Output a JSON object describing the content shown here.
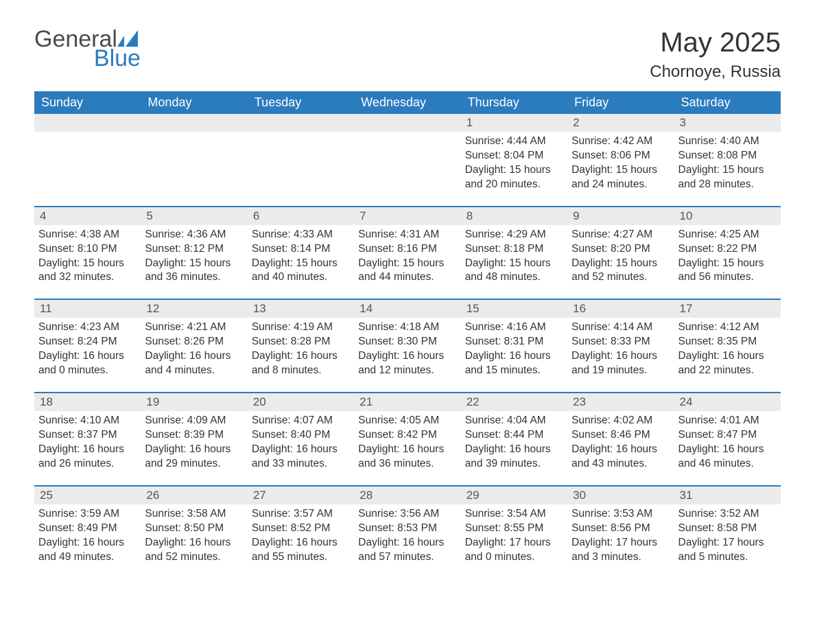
{
  "logo": {
    "text_general": "General",
    "text_blue": "Blue",
    "icon_color": "#2b7bbf"
  },
  "header": {
    "month_title": "May 2025",
    "location": "Chornoye, Russia"
  },
  "colors": {
    "header_bg": "#2b7bbf",
    "header_text": "#ffffff",
    "daynum_bg": "#ebebeb",
    "week_border": "#2b7bbf",
    "body_text": "#333333",
    "logo_gray": "#4a4a4a",
    "logo_blue": "#2b7bbf"
  },
  "weekdays": [
    "Sunday",
    "Monday",
    "Tuesday",
    "Wednesday",
    "Thursday",
    "Friday",
    "Saturday"
  ],
  "weeks": [
    [
      {
        "empty": true
      },
      {
        "empty": true
      },
      {
        "empty": true
      },
      {
        "empty": true
      },
      {
        "num": "1",
        "sunrise": "Sunrise: 4:44 AM",
        "sunset": "Sunset: 8:04 PM",
        "daylight": "Daylight: 15 hours and 20 minutes."
      },
      {
        "num": "2",
        "sunrise": "Sunrise: 4:42 AM",
        "sunset": "Sunset: 8:06 PM",
        "daylight": "Daylight: 15 hours and 24 minutes."
      },
      {
        "num": "3",
        "sunrise": "Sunrise: 4:40 AM",
        "sunset": "Sunset: 8:08 PM",
        "daylight": "Daylight: 15 hours and 28 minutes."
      }
    ],
    [
      {
        "num": "4",
        "sunrise": "Sunrise: 4:38 AM",
        "sunset": "Sunset: 8:10 PM",
        "daylight": "Daylight: 15 hours and 32 minutes."
      },
      {
        "num": "5",
        "sunrise": "Sunrise: 4:36 AM",
        "sunset": "Sunset: 8:12 PM",
        "daylight": "Daylight: 15 hours and 36 minutes."
      },
      {
        "num": "6",
        "sunrise": "Sunrise: 4:33 AM",
        "sunset": "Sunset: 8:14 PM",
        "daylight": "Daylight: 15 hours and 40 minutes."
      },
      {
        "num": "7",
        "sunrise": "Sunrise: 4:31 AM",
        "sunset": "Sunset: 8:16 PM",
        "daylight": "Daylight: 15 hours and 44 minutes."
      },
      {
        "num": "8",
        "sunrise": "Sunrise: 4:29 AM",
        "sunset": "Sunset: 8:18 PM",
        "daylight": "Daylight: 15 hours and 48 minutes."
      },
      {
        "num": "9",
        "sunrise": "Sunrise: 4:27 AM",
        "sunset": "Sunset: 8:20 PM",
        "daylight": "Daylight: 15 hours and 52 minutes."
      },
      {
        "num": "10",
        "sunrise": "Sunrise: 4:25 AM",
        "sunset": "Sunset: 8:22 PM",
        "daylight": "Daylight: 15 hours and 56 minutes."
      }
    ],
    [
      {
        "num": "11",
        "sunrise": "Sunrise: 4:23 AM",
        "sunset": "Sunset: 8:24 PM",
        "daylight": "Daylight: 16 hours and 0 minutes."
      },
      {
        "num": "12",
        "sunrise": "Sunrise: 4:21 AM",
        "sunset": "Sunset: 8:26 PM",
        "daylight": "Daylight: 16 hours and 4 minutes."
      },
      {
        "num": "13",
        "sunrise": "Sunrise: 4:19 AM",
        "sunset": "Sunset: 8:28 PM",
        "daylight": "Daylight: 16 hours and 8 minutes."
      },
      {
        "num": "14",
        "sunrise": "Sunrise: 4:18 AM",
        "sunset": "Sunset: 8:30 PM",
        "daylight": "Daylight: 16 hours and 12 minutes."
      },
      {
        "num": "15",
        "sunrise": "Sunrise: 4:16 AM",
        "sunset": "Sunset: 8:31 PM",
        "daylight": "Daylight: 16 hours and 15 minutes."
      },
      {
        "num": "16",
        "sunrise": "Sunrise: 4:14 AM",
        "sunset": "Sunset: 8:33 PM",
        "daylight": "Daylight: 16 hours and 19 minutes."
      },
      {
        "num": "17",
        "sunrise": "Sunrise: 4:12 AM",
        "sunset": "Sunset: 8:35 PM",
        "daylight": "Daylight: 16 hours and 22 minutes."
      }
    ],
    [
      {
        "num": "18",
        "sunrise": "Sunrise: 4:10 AM",
        "sunset": "Sunset: 8:37 PM",
        "daylight": "Daylight: 16 hours and 26 minutes."
      },
      {
        "num": "19",
        "sunrise": "Sunrise: 4:09 AM",
        "sunset": "Sunset: 8:39 PM",
        "daylight": "Daylight: 16 hours and 29 minutes."
      },
      {
        "num": "20",
        "sunrise": "Sunrise: 4:07 AM",
        "sunset": "Sunset: 8:40 PM",
        "daylight": "Daylight: 16 hours and 33 minutes."
      },
      {
        "num": "21",
        "sunrise": "Sunrise: 4:05 AM",
        "sunset": "Sunset: 8:42 PM",
        "daylight": "Daylight: 16 hours and 36 minutes."
      },
      {
        "num": "22",
        "sunrise": "Sunrise: 4:04 AM",
        "sunset": "Sunset: 8:44 PM",
        "daylight": "Daylight: 16 hours and 39 minutes."
      },
      {
        "num": "23",
        "sunrise": "Sunrise: 4:02 AM",
        "sunset": "Sunset: 8:46 PM",
        "daylight": "Daylight: 16 hours and 43 minutes."
      },
      {
        "num": "24",
        "sunrise": "Sunrise: 4:01 AM",
        "sunset": "Sunset: 8:47 PM",
        "daylight": "Daylight: 16 hours and 46 minutes."
      }
    ],
    [
      {
        "num": "25",
        "sunrise": "Sunrise: 3:59 AM",
        "sunset": "Sunset: 8:49 PM",
        "daylight": "Daylight: 16 hours and 49 minutes."
      },
      {
        "num": "26",
        "sunrise": "Sunrise: 3:58 AM",
        "sunset": "Sunset: 8:50 PM",
        "daylight": "Daylight: 16 hours and 52 minutes."
      },
      {
        "num": "27",
        "sunrise": "Sunrise: 3:57 AM",
        "sunset": "Sunset: 8:52 PM",
        "daylight": "Daylight: 16 hours and 55 minutes."
      },
      {
        "num": "28",
        "sunrise": "Sunrise: 3:56 AM",
        "sunset": "Sunset: 8:53 PM",
        "daylight": "Daylight: 16 hours and 57 minutes."
      },
      {
        "num": "29",
        "sunrise": "Sunrise: 3:54 AM",
        "sunset": "Sunset: 8:55 PM",
        "daylight": "Daylight: 17 hours and 0 minutes."
      },
      {
        "num": "30",
        "sunrise": "Sunrise: 3:53 AM",
        "sunset": "Sunset: 8:56 PM",
        "daylight": "Daylight: 17 hours and 3 minutes."
      },
      {
        "num": "31",
        "sunrise": "Sunrise: 3:52 AM",
        "sunset": "Sunset: 8:58 PM",
        "daylight": "Daylight: 17 hours and 5 minutes."
      }
    ]
  ]
}
